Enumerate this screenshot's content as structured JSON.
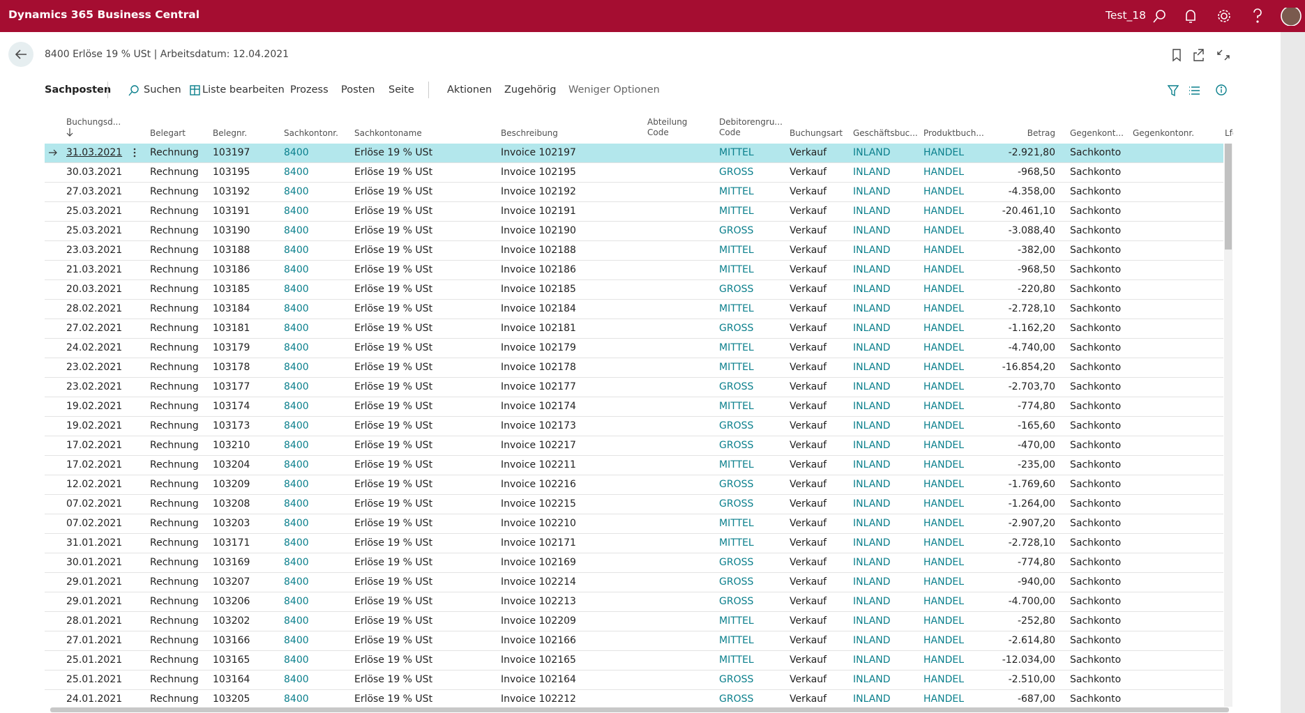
{
  "header": {
    "app": "Dynamics 365 Business Central",
    "company": "Test_18"
  },
  "page": {
    "title": "8400 Erlöse 19 % USt | Arbeitsdatum: 12.04.2021"
  },
  "toolbar": {
    "tab": "Sachposten",
    "actions": [
      "Suchen",
      "Liste bearbeiten",
      "Prozess",
      "Posten",
      "Seite",
      "Aktionen",
      "Zugehörig",
      "Weniger Optionen"
    ]
  },
  "table": {
    "columns": [
      "Buchungsd...",
      "Belegart",
      "Belegnr.",
      "Sachkontonr.",
      "Sachkontoname",
      "Beschreibung",
      "Abteilung\nCode",
      "Debitorengru...\nCode",
      "Buchungsart",
      "Geschäftsbuc...",
      "Produktbuch...",
      "Betrag",
      "Gegenkont...",
      "Gegenkontonr.",
      "Lfd"
    ],
    "rows": [
      [
        "31.03.2021",
        "Rechnung",
        "103197",
        "8400",
        "Erlöse 19 % USt",
        "Invoice 102197",
        "MITTEL",
        "Verkauf",
        "INLAND",
        "HANDEL",
        "-2.921,80",
        "Sachkonto"
      ],
      [
        "30.03.2021",
        "Rechnung",
        "103195",
        "8400",
        "Erlöse 19 % USt",
        "Invoice 102195",
        "GROSS",
        "Verkauf",
        "INLAND",
        "HANDEL",
        "-968,50",
        "Sachkonto"
      ],
      [
        "27.03.2021",
        "Rechnung",
        "103192",
        "8400",
        "Erlöse 19 % USt",
        "Invoice 102192",
        "MITTEL",
        "Verkauf",
        "INLAND",
        "HANDEL",
        "-4.358,00",
        "Sachkonto"
      ],
      [
        "25.03.2021",
        "Rechnung",
        "103191",
        "8400",
        "Erlöse 19 % USt",
        "Invoice 102191",
        "MITTEL",
        "Verkauf",
        "INLAND",
        "HANDEL",
        "-20.461,10",
        "Sachkonto"
      ],
      [
        "25.03.2021",
        "Rechnung",
        "103190",
        "8400",
        "Erlöse 19 % USt",
        "Invoice 102190",
        "GROSS",
        "Verkauf",
        "INLAND",
        "HANDEL",
        "-3.088,40",
        "Sachkonto"
      ],
      [
        "23.03.2021",
        "Rechnung",
        "103188",
        "8400",
        "Erlöse 19 % USt",
        "Invoice 102188",
        "MITTEL",
        "Verkauf",
        "INLAND",
        "HANDEL",
        "-382,00",
        "Sachkonto"
      ],
      [
        "21.03.2021",
        "Rechnung",
        "103186",
        "8400",
        "Erlöse 19 % USt",
        "Invoice 102186",
        "MITTEL",
        "Verkauf",
        "INLAND",
        "HANDEL",
        "-968,50",
        "Sachkonto"
      ],
      [
        "20.03.2021",
        "Rechnung",
        "103185",
        "8400",
        "Erlöse 19 % USt",
        "Invoice 102185",
        "GROSS",
        "Verkauf",
        "INLAND",
        "HANDEL",
        "-220,80",
        "Sachkonto"
      ],
      [
        "28.02.2021",
        "Rechnung",
        "103184",
        "8400",
        "Erlöse 19 % USt",
        "Invoice 102184",
        "MITTEL",
        "Verkauf",
        "INLAND",
        "HANDEL",
        "-2.728,10",
        "Sachkonto"
      ],
      [
        "27.02.2021",
        "Rechnung",
        "103181",
        "8400",
        "Erlöse 19 % USt",
        "Invoice 102181",
        "GROSS",
        "Verkauf",
        "INLAND",
        "HANDEL",
        "-1.162,20",
        "Sachkonto"
      ],
      [
        "24.02.2021",
        "Rechnung",
        "103179",
        "8400",
        "Erlöse 19 % USt",
        "Invoice 102179",
        "MITTEL",
        "Verkauf",
        "INLAND",
        "HANDEL",
        "-4.740,00",
        "Sachkonto"
      ],
      [
        "23.02.2021",
        "Rechnung",
        "103178",
        "8400",
        "Erlöse 19 % USt",
        "Invoice 102178",
        "MITTEL",
        "Verkauf",
        "INLAND",
        "HANDEL",
        "-16.854,20",
        "Sachkonto"
      ],
      [
        "23.02.2021",
        "Rechnung",
        "103177",
        "8400",
        "Erlöse 19 % USt",
        "Invoice 102177",
        "GROSS",
        "Verkauf",
        "INLAND",
        "HANDEL",
        "-2.703,70",
        "Sachkonto"
      ],
      [
        "19.02.2021",
        "Rechnung",
        "103174",
        "8400",
        "Erlöse 19 % USt",
        "Invoice 102174",
        "MITTEL",
        "Verkauf",
        "INLAND",
        "HANDEL",
        "-774,80",
        "Sachkonto"
      ],
      [
        "19.02.2021",
        "Rechnung",
        "103173",
        "8400",
        "Erlöse 19 % USt",
        "Invoice 102173",
        "GROSS",
        "Verkauf",
        "INLAND",
        "HANDEL",
        "-165,60",
        "Sachkonto"
      ],
      [
        "17.02.2021",
        "Rechnung",
        "103210",
        "8400",
        "Erlöse 19 % USt",
        "Invoice 102217",
        "GROSS",
        "Verkauf",
        "INLAND",
        "HANDEL",
        "-470,00",
        "Sachkonto"
      ],
      [
        "17.02.2021",
        "Rechnung",
        "103204",
        "8400",
        "Erlöse 19 % USt",
        "Invoice 102211",
        "MITTEL",
        "Verkauf",
        "INLAND",
        "HANDEL",
        "-235,00",
        "Sachkonto"
      ],
      [
        "12.02.2021",
        "Rechnung",
        "103209",
        "8400",
        "Erlöse 19 % USt",
        "Invoice 102216",
        "GROSS",
        "Verkauf",
        "INLAND",
        "HANDEL",
        "-1.769,60",
        "Sachkonto"
      ],
      [
        "07.02.2021",
        "Rechnung",
        "103208",
        "8400",
        "Erlöse 19 % USt",
        "Invoice 102215",
        "GROSS",
        "Verkauf",
        "INLAND",
        "HANDEL",
        "-1.264,00",
        "Sachkonto"
      ],
      [
        "07.02.2021",
        "Rechnung",
        "103203",
        "8400",
        "Erlöse 19 % USt",
        "Invoice 102210",
        "MITTEL",
        "Verkauf",
        "INLAND",
        "HANDEL",
        "-2.907,20",
        "Sachkonto"
      ],
      [
        "31.01.2021",
        "Rechnung",
        "103171",
        "8400",
        "Erlöse 19 % USt",
        "Invoice 102171",
        "MITTEL",
        "Verkauf",
        "INLAND",
        "HANDEL",
        "-2.728,10",
        "Sachkonto"
      ],
      [
        "30.01.2021",
        "Rechnung",
        "103169",
        "8400",
        "Erlöse 19 % USt",
        "Invoice 102169",
        "GROSS",
        "Verkauf",
        "INLAND",
        "HANDEL",
        "-774,80",
        "Sachkonto"
      ],
      [
        "29.01.2021",
        "Rechnung",
        "103207",
        "8400",
        "Erlöse 19 % USt",
        "Invoice 102214",
        "GROSS",
        "Verkauf",
        "INLAND",
        "HANDEL",
        "-940,00",
        "Sachkonto"
      ],
      [
        "29.01.2021",
        "Rechnung",
        "103206",
        "8400",
        "Erlöse 19 % USt",
        "Invoice 102213",
        "GROSS",
        "Verkauf",
        "INLAND",
        "HANDEL",
        "-4.700,00",
        "Sachkonto"
      ],
      [
        "28.01.2021",
        "Rechnung",
        "103202",
        "8400",
        "Erlöse 19 % USt",
        "Invoice 102209",
        "MITTEL",
        "Verkauf",
        "INLAND",
        "HANDEL",
        "-252,80",
        "Sachkonto"
      ],
      [
        "27.01.2021",
        "Rechnung",
        "103166",
        "8400",
        "Erlöse 19 % USt",
        "Invoice 102166",
        "MITTEL",
        "Verkauf",
        "INLAND",
        "HANDEL",
        "-2.614,80",
        "Sachkonto"
      ],
      [
        "25.01.2021",
        "Rechnung",
        "103165",
        "8400",
        "Erlöse 19 % USt",
        "Invoice 102165",
        "MITTEL",
        "Verkauf",
        "INLAND",
        "HANDEL",
        "-12.034,00",
        "Sachkonto"
      ],
      [
        "25.01.2021",
        "Rechnung",
        "103164",
        "8400",
        "Erlöse 19 % USt",
        "Invoice 102164",
        "GROSS",
        "Verkauf",
        "INLAND",
        "HANDEL",
        "-2.510,00",
        "Sachkonto"
      ],
      [
        "24.01.2021",
        "Rechnung",
        "103205",
        "8400",
        "Erlöse 19 % USt",
        "Invoice 102212",
        "GROSS",
        "Verkauf",
        "INLAND",
        "HANDEL",
        "-687,00",
        "Sachkonto"
      ]
    ]
  }
}
